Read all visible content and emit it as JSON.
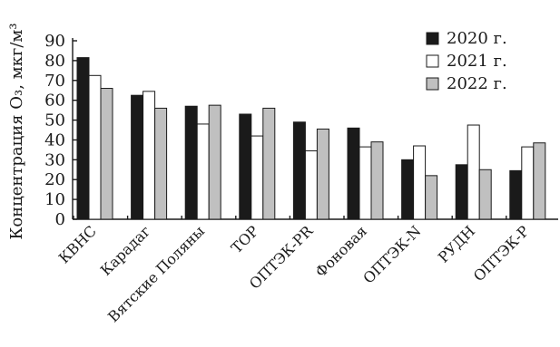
{
  "chart_data": {
    "type": "bar",
    "ylabel": "Концентрация O₃, мкг/м³",
    "ylim": [
      0,
      90
    ],
    "yticks": [
      0,
      10,
      20,
      30,
      40,
      50,
      60,
      70,
      80,
      90
    ],
    "categories": [
      "КВНС",
      "Карадаг",
      "Вятские Поляны",
      "ТОР",
      "ОПТЭК-PR",
      "Фоновая",
      "ОПТЭК-N",
      "РУДН",
      "ОПТЭК-Р"
    ],
    "series": [
      {
        "name": "2020 г.",
        "color": "#1a1a1a",
        "values": [
          81.5,
          62.5,
          57,
          53,
          49,
          46,
          30,
          27.5,
          24.5
        ]
      },
      {
        "name": "2021 г.",
        "color": "#ffffff",
        "values": [
          72.5,
          64.5,
          48,
          42,
          34.5,
          36.5,
          37,
          47.5,
          36.5
        ]
      },
      {
        "name": "2022 г.",
        "color": "#c0c0c0",
        "values": [
          66,
          56,
          57.5,
          56,
          45.5,
          39,
          22,
          25,
          38.5
        ]
      }
    ],
    "legend_position": "top-right",
    "grid": false
  }
}
